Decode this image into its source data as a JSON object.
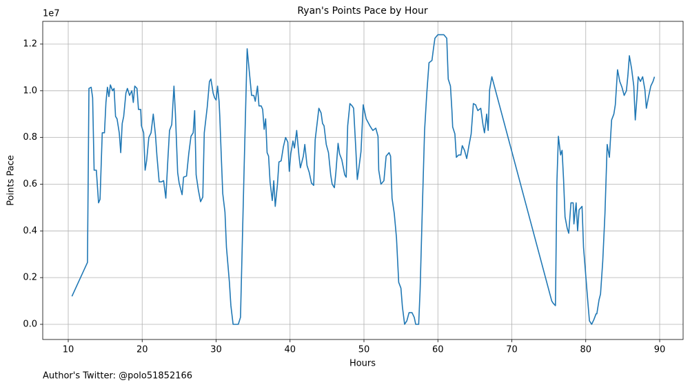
{
  "chart_data": {
    "type": "line",
    "title": "Ryan's Points Pace by Hour",
    "x_label": "Hours",
    "y_label": "Points Pace",
    "y_offset_label": "1e7",
    "footer": "Author's Twitter: @polo51852166",
    "color": "#1f77b4",
    "grid": true,
    "xlim": [
      6.55,
      93.17
    ],
    "ylim": [
      -649000,
      12972000
    ],
    "xticks": [
      10,
      20,
      30,
      40,
      50,
      60,
      70,
      80,
      90
    ],
    "yticks": [
      {
        "value": 0,
        "label": "0.0"
      },
      {
        "value": 2000000,
        "label": "0.2"
      },
      {
        "value": 4000000,
        "label": "0.4"
      },
      {
        "value": 6000000,
        "label": "0.6"
      },
      {
        "value": 8000000,
        "label": "0.8"
      },
      {
        "value": 10000000,
        "label": "1.0"
      },
      {
        "value": 12000000,
        "label": "1.2"
      }
    ],
    "x": [
      10.5,
      12.6,
      12.8,
      13.1,
      13.3,
      13.5,
      13.8,
      14.1,
      14.3,
      14.6,
      14.9,
      15.1,
      15.3,
      15.5,
      15.7,
      16.0,
      16.2,
      16.4,
      16.6,
      16.9,
      17.1,
      17.3,
      17.5,
      17.8,
      18.0,
      18.3,
      18.6,
      18.8,
      19.0,
      19.3,
      19.5,
      19.8,
      19.9,
      20.2,
      20.4,
      20.6,
      20.9,
      21.2,
      21.5,
      21.8,
      22.0,
      22.3,
      22.6,
      22.9,
      23.2,
      23.5,
      23.7,
      24.0,
      24.3,
      24.5,
      24.8,
      25.0,
      25.4,
      25.6,
      26.0,
      26.3,
      26.6,
      26.9,
      27.1,
      27.3,
      27.6,
      27.9,
      28.2,
      28.4,
      28.8,
      29.1,
      29.3,
      29.6,
      29.8,
      30.0,
      30.2,
      30.4,
      30.5,
      30.7,
      30.9,
      31.2,
      31.4,
      31.8,
      32.0,
      32.3,
      33.0,
      33.3,
      33.8,
      34.2,
      34.5,
      34.8,
      35.1,
      35.3,
      35.6,
      35.8,
      36.1,
      36.3,
      36.5,
      36.7,
      36.9,
      37.1,
      37.3,
      37.6,
      37.8,
      38.0,
      38.3,
      38.5,
      38.8,
      39.1,
      39.4,
      39.7,
      39.9,
      40.1,
      40.4,
      40.6,
      40.9,
      41.2,
      41.4,
      41.8,
      42.0,
      42.3,
      42.6,
      42.9,
      43.2,
      43.4,
      43.7,
      43.9,
      44.2,
      44.4,
      44.6,
      44.9,
      45.2,
      45.5,
      45.7,
      46.0,
      46.2,
      46.5,
      46.7,
      47.0,
      47.4,
      47.6,
      47.8,
      48.1,
      48.4,
      48.6,
      48.9,
      49.1,
      49.3,
      49.6,
      49.9,
      50.3,
      50.8,
      51.2,
      51.6,
      51.9,
      52.0,
      52.3,
      52.7,
      53.0,
      53.4,
      53.6,
      53.8,
      54.1,
      54.4,
      54.7,
      55.0,
      55.2,
      55.5,
      55.8,
      56.1,
      56.5,
      56.8,
      57.0,
      57.4,
      57.6,
      57.9,
      58.2,
      58.5,
      58.8,
      59.2,
      59.4,
      59.6,
      60.0,
      60.4,
      60.8,
      61.2,
      61.4,
      61.7,
      61.9,
      62.0,
      62.3,
      62.5,
      62.8,
      63.1,
      63.3,
      63.6,
      63.9,
      64.2,
      64.5,
      64.8,
      65.1,
      65.4,
      65.8,
      66.1,
      66.3,
      66.6,
      66.8,
      67.0,
      67.3,
      75.4,
      75.6,
      75.9,
      76.1,
      76.3,
      76.6,
      76.8,
      77.0,
      77.2,
      77.5,
      77.7,
      78.0,
      78.3,
      78.4,
      78.7,
      78.9,
      79.1,
      79.5,
      79.7,
      80.0,
      80.3,
      80.5,
      80.8,
      81.1,
      81.4,
      81.5,
      81.8,
      82.0,
      82.3,
      82.6,
      82.9,
      83.2,
      83.5,
      83.8,
      84.0,
      84.3,
      84.6,
      84.9,
      85.2,
      85.5,
      85.7,
      85.9,
      86.2,
      86.5,
      86.7,
      86.9,
      87.1,
      87.4,
      87.7,
      88.0,
      88.2,
      88.5,
      88.8,
      89.1,
      89.3
    ],
    "values": [
      1200000,
      2650000,
      10100000,
      10150000,
      9700000,
      6600000,
      6600000,
      5200000,
      5350000,
      8200000,
      8200000,
      9500000,
      10150000,
      9750000,
      10250000,
      10000000,
      10100000,
      8900000,
      8800000,
      8200000,
      7350000,
      8600000,
      8900000,
      9900000,
      10100000,
      9800000,
      10000000,
      9500000,
      10200000,
      10100000,
      9200000,
      9200000,
      8500000,
      8200000,
      6600000,
      7000000,
      8000000,
      8200000,
      9000000,
      8100000,
      7200000,
      6100000,
      6100000,
      6150000,
      5400000,
      7200000,
      8300000,
      8550000,
      10200000,
      9000000,
      6500000,
      6050000,
      5550000,
      6300000,
      6350000,
      7300000,
      8050000,
      8200000,
      9150000,
      6400000,
      5750000,
      5250000,
      5450000,
      8200000,
      9300000,
      10400000,
      10500000,
      9900000,
      9700000,
      9600000,
      10200000,
      9550000,
      8900000,
      7200000,
      5600000,
      4800000,
      3300000,
      1800000,
      800000,
      0,
      0,
      300000,
      6800000,
      11800000,
      10800000,
      9800000,
      9800000,
      9550000,
      10200000,
      9350000,
      9350000,
      9200000,
      8350000,
      8800000,
      7350000,
      7200000,
      6100000,
      5300000,
      6150000,
      5050000,
      6000000,
      6950000,
      7000000,
      7600000,
      8000000,
      7800000,
      6550000,
      7300000,
      7850000,
      7550000,
      8300000,
      7250000,
      6700000,
      7200000,
      7700000,
      6800000,
      6500000,
      6050000,
      5950000,
      7900000,
      8700000,
      9250000,
      9050000,
      8600000,
      8500000,
      7700000,
      7350000,
      6400000,
      6000000,
      5850000,
      6500000,
      7750000,
      7300000,
      7050000,
      6400000,
      6300000,
      8500000,
      9450000,
      9350000,
      9250000,
      7500000,
      6200000,
      6650000,
      7400000,
      9400000,
      8800000,
      8500000,
      8300000,
      8400000,
      8050000,
      6600000,
      6000000,
      6150000,
      7200000,
      7350000,
      7200000,
      5400000,
      4750000,
      3700000,
      1800000,
      1550000,
      750000,
      0,
      150000,
      500000,
      500000,
      300000,
      0,
      0,
      1500000,
      5000000,
      8300000,
      9900000,
      11200000,
      11300000,
      11800000,
      12250000,
      12400000,
      12400000,
      12400000,
      12250000,
      10500000,
      10200000,
      9150000,
      8450000,
      8150000,
      7150000,
      7250000,
      7250000,
      7650000,
      7450000,
      7100000,
      7650000,
      8150000,
      9450000,
      9400000,
      9150000,
      9250000,
      8550000,
      8200000,
      9000000,
      8300000,
      10050000,
      10600000,
      1000000,
      900000,
      800000,
      6100000,
      8050000,
      7250000,
      7450000,
      6200000,
      4600000,
      4100000,
      3900000,
      5200000,
      5200000,
      4300000,
      5200000,
      4000000,
      4900000,
      5050000,
      3300000,
      2100000,
      900000,
      150000,
      0,
      200000,
      450000,
      450000,
      1050000,
      1300000,
      2700000,
      4750000,
      7700000,
      7150000,
      8750000,
      9000000,
      9400000,
      10900000,
      10400000,
      10150000,
      9800000,
      10000000,
      10650000,
      11500000,
      10950000,
      10200000,
      8750000,
      9600000,
      10600000,
      10400000,
      10600000,
      10050000,
      9250000,
      9750000,
      10200000,
      10400000,
      10600000
    ]
  }
}
